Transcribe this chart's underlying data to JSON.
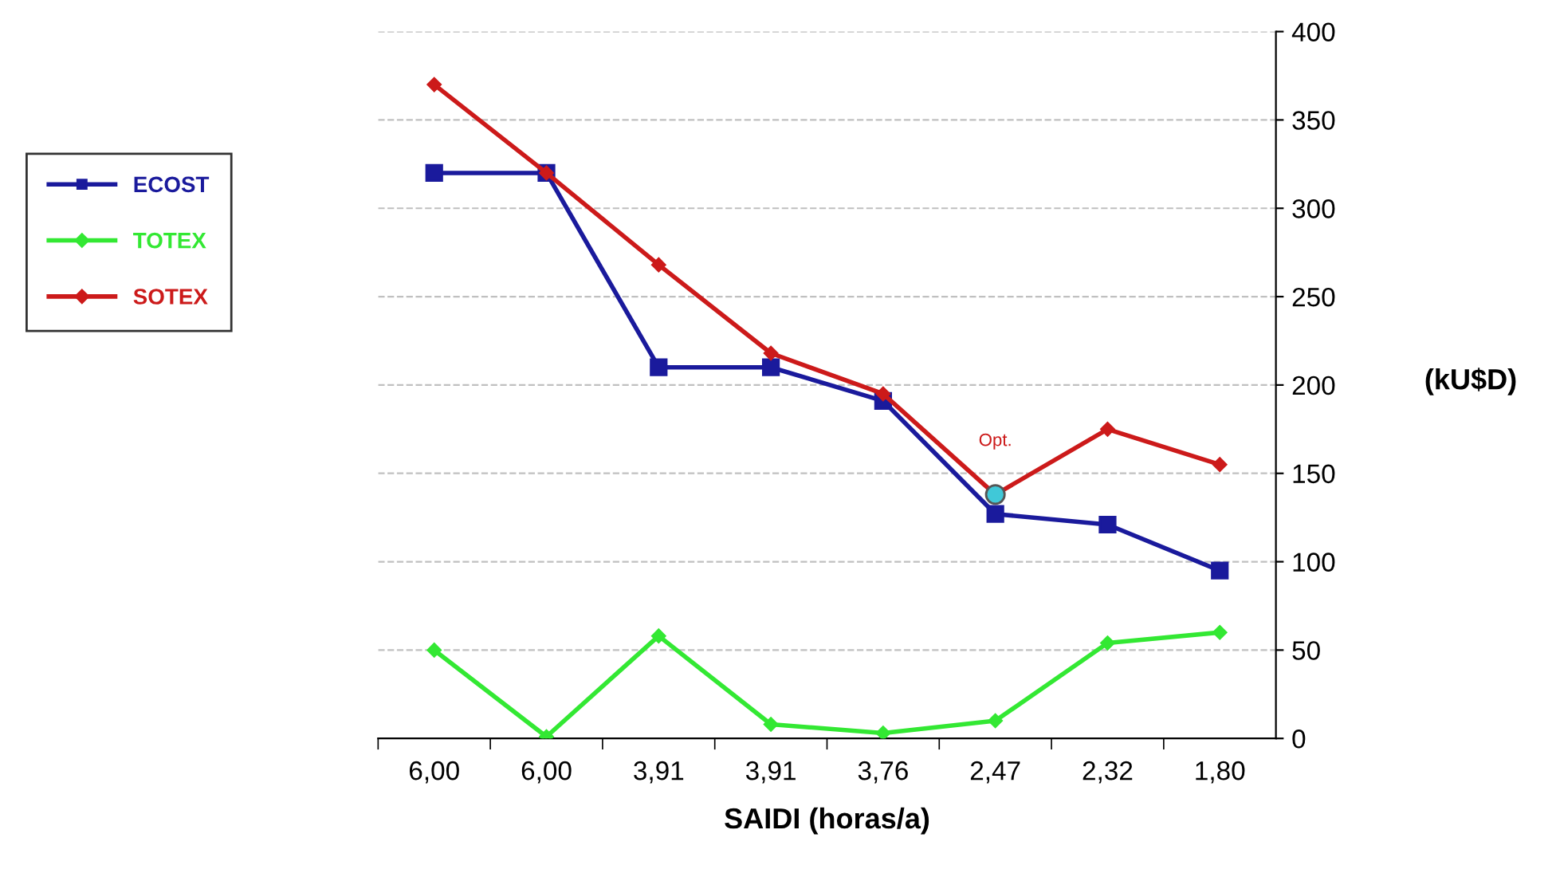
{
  "chart_data": {
    "type": "line",
    "xlabel": "SAIDI (horas/a)",
    "ylabel": "(kU$D)",
    "categories": [
      "6,00",
      "6,00",
      "3,91",
      "3,91",
      "3,76",
      "2,47",
      "2,32",
      "1,80"
    ],
    "series": [
      {
        "name": "ECOST",
        "color": "#1a1a9c",
        "marker": "square",
        "values": [
          320,
          320,
          210,
          210,
          191,
          127,
          121,
          95
        ]
      },
      {
        "name": "TOTEX",
        "color": "#33e833",
        "marker": "diamond",
        "values": [
          50,
          1,
          58,
          8,
          3,
          10,
          54,
          60
        ]
      },
      {
        "name": "SOTEX",
        "color": "#cc1a1a",
        "marker": "diamond",
        "values": [
          370,
          320,
          268,
          218,
          195,
          138,
          175,
          155
        ]
      },
      {
        "type": "scatter",
        "color": "#40c8d8",
        "marker": "circle",
        "values": [
          null,
          null,
          null,
          null,
          null,
          138,
          null,
          null
        ]
      }
    ],
    "annotations": [
      {
        "text": "Opt.",
        "x": "2,47",
        "y": 138
      }
    ],
    "ylim": [
      0,
      400
    ],
    "yticks": [
      0,
      50,
      100,
      150,
      200,
      250,
      300,
      350,
      400
    ],
    "grid": "y",
    "legend": "left",
    "line_style": "solid"
  }
}
